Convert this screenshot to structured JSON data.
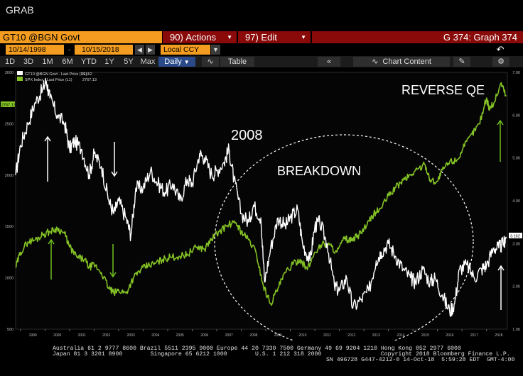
{
  "header": {
    "grab_label": "GRAB"
  },
  "toolbar": {
    "security": "GT10 @BGN Govt",
    "actions_num": "90",
    "actions_label": "Actions",
    "edit_num": "97",
    "edit_label": "Edit",
    "graph_title": "G 374: Graph 374",
    "start_date": "10/14/1998",
    "end_date": "10/15/2018",
    "currency": "Local CCY",
    "ranges": [
      "1D",
      "3D",
      "1M",
      "6M",
      "YTD",
      "1Y",
      "5Y",
      "Max"
    ],
    "period": "Daily",
    "table_label": "Table",
    "chart_content_label": "Chart Content"
  },
  "legend": {
    "series1": "GT10 @BGN Govt - Last Price (R1)",
    "series1_value": "3.162",
    "series2": "SPX Index - Last Price (L1)",
    "series2_value": "2767.13"
  },
  "annotations": {
    "a2008": "2008",
    "breakdown": "BREAKDOWN",
    "reverse_qe": "REVERSE QE"
  },
  "footer": {
    "line1": "Australia 61 2 9777 8600 Brazil 5511 2395 9000 Europe 44 20 7330 7500 Germany 49 69 9204 1210 Hong Kong 852 2977 6000",
    "line2": "Japan 81 3 3201 8900        Singapore 65 6212 1000        U.S. 1 212 318 2000                 Copyright 2018 Bloomberg Finance L.P.",
    "line3": "SN 496728 G447-4212-0 14-Oct-18  5:59:28 EDT  GMT-4:00"
  },
  "colors": {
    "gt10": "#ffffff",
    "spx": "#84c225",
    "orange": "#f39c1f",
    "red": "#8a0a0a"
  },
  "chart_data": {
    "type": "line",
    "x_labels": [
      "1999",
      "2000",
      "2001",
      "2002",
      "2003",
      "2004",
      "2005",
      "2006",
      "2007",
      "2008",
      "2009",
      "2010",
      "2011",
      "2012",
      "2013",
      "2014",
      "2015",
      "2016",
      "2017",
      "2018"
    ],
    "y_left_ticks": [
      "3000",
      "2500",
      "2000",
      "1500",
      "1000",
      "500"
    ],
    "y_right_ticks": [
      "7.00",
      "6.00",
      "5.00",
      "4.00",
      "3.00",
      "2.00",
      "1.00"
    ],
    "ylim_left": [
      500,
      3000
    ],
    "ylim_right": [
      1.0,
      7.0
    ],
    "series": [
      {
        "name": "GT10 @BGN Govt - Last Price (R1)",
        "axis": "right",
        "x": [
          1998.8,
          1999.0,
          1999.3,
          1999.6,
          1999.9,
          2000.05,
          2000.2,
          2000.5,
          2000.8,
          2001.0,
          2001.2,
          2001.5,
          2001.8,
          2002.0,
          2002.3,
          2002.6,
          2002.8,
          2003.0,
          2003.3,
          2003.5,
          2003.7,
          2004.0,
          2004.3,
          2004.6,
          2004.9,
          2005.2,
          2005.5,
          2005.8,
          2006.0,
          2006.3,
          2006.5,
          2006.8,
          2007.0,
          2007.3,
          2007.5,
          2007.7,
          2008.0,
          2008.3,
          2008.5,
          2008.8,
          2008.95,
          2009.2,
          2009.5,
          2009.8,
          2010.0,
          2010.3,
          2010.5,
          2010.8,
          2011.0,
          2011.2,
          2011.5,
          2011.8,
          2012.0,
          2012.3,
          2012.55,
          2012.9,
          2013.2,
          2013.5,
          2013.7,
          2014.0,
          2014.3,
          2014.6,
          2014.9,
          2015.1,
          2015.4,
          2015.7,
          2015.9,
          2016.2,
          2016.5,
          2016.7,
          2016.9,
          2017.2,
          2017.5,
          2017.8,
          2018.0,
          2018.3,
          2018.5,
          2018.7,
          2018.8
        ],
        "values": [
          4.6,
          5.3,
          5.8,
          6.3,
          6.6,
          6.8,
          6.4,
          6.0,
          5.8,
          5.2,
          5.4,
          5.2,
          4.6,
          5.1,
          4.8,
          4.0,
          3.7,
          4.0,
          3.6,
          3.2,
          4.3,
          4.3,
          4.7,
          4.4,
          4.2,
          4.4,
          4.0,
          4.5,
          4.4,
          5.1,
          5.0,
          4.6,
          4.7,
          4.9,
          5.2,
          4.5,
          3.7,
          3.5,
          3.9,
          3.6,
          2.1,
          2.9,
          3.6,
          3.4,
          3.6,
          3.8,
          3.0,
          2.6,
          3.4,
          3.5,
          3.0,
          2.0,
          1.9,
          2.2,
          1.5,
          1.7,
          1.9,
          2.6,
          2.8,
          3.0,
          2.7,
          2.4,
          2.2,
          2.1,
          2.4,
          2.1,
          2.2,
          1.8,
          1.4,
          1.6,
          2.4,
          2.5,
          2.2,
          2.4,
          2.5,
          2.9,
          2.9,
          3.0,
          3.16
        ]
      },
      {
        "name": "SPX Index - Last Price (L1)",
        "axis": "left",
        "x": [
          1998.8,
          1999.0,
          1999.3,
          1999.6,
          1999.9,
          2000.2,
          2000.5,
          2000.8,
          2001.0,
          2001.3,
          2001.6,
          2001.8,
          2002.0,
          2002.3,
          2002.6,
          2002.8,
          2003.0,
          2003.3,
          2003.6,
          2003.9,
          2004.2,
          2004.5,
          2004.8,
          2005.1,
          2005.5,
          2005.8,
          2006.2,
          2006.5,
          2006.8,
          2007.1,
          2007.5,
          2007.8,
          2008.0,
          2008.3,
          2008.6,
          2008.9,
          2009.2,
          2009.5,
          2009.8,
          2010.1,
          2010.4,
          2010.7,
          2011.0,
          2011.3,
          2011.6,
          2011.9,
          2012.2,
          2012.5,
          2012.8,
          2013.1,
          2013.4,
          2013.7,
          2014.0,
          2014.3,
          2014.6,
          2014.9,
          2015.2,
          2015.5,
          2015.7,
          2016.0,
          2016.2,
          2016.5,
          2016.8,
          2017.1,
          2017.4,
          2017.7,
          2018.0,
          2018.1,
          2018.3,
          2018.6,
          2018.8
        ],
        "values": [
          1100,
          1250,
          1350,
          1370,
          1420,
          1450,
          1480,
          1430,
          1300,
          1200,
          1180,
          1100,
          1130,
          1050,
          900,
          850,
          880,
          850,
          1000,
          1080,
          1120,
          1140,
          1180,
          1200,
          1210,
          1230,
          1300,
          1280,
          1380,
          1450,
          1520,
          1530,
          1450,
          1370,
          1250,
          920,
          750,
          900,
          1050,
          1130,
          1180,
          1080,
          1250,
          1330,
          1320,
          1250,
          1380,
          1360,
          1420,
          1500,
          1620,
          1680,
          1800,
          1880,
          1950,
          2000,
          2060,
          2100,
          1950,
          1940,
          2050,
          2130,
          2150,
          2280,
          2400,
          2500,
          2750,
          2650,
          2700,
          2900,
          2767
        ]
      }
    ]
  }
}
